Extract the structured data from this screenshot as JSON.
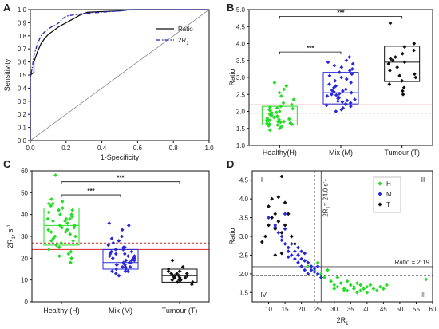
{
  "figure": {
    "panels": [
      "A",
      "B",
      "C",
      "D"
    ]
  },
  "chart_data": [
    {
      "panel": "A",
      "type": "line",
      "xlabel": "1-Specificity",
      "ylabel": "Sensitivity",
      "xlim": [
        0,
        1
      ],
      "ylim": [
        0,
        1
      ],
      "xticks": [
        "0.0",
        "0.2",
        "0.4",
        "0.6",
        "0.8",
        "1.0"
      ],
      "yticks": [
        "0.0",
        "0.1",
        "0.2",
        "0.3",
        "0.4",
        "0.5",
        "0.6",
        "0.7",
        "0.8",
        "0.9",
        "1.0"
      ],
      "legend_position": "top-right",
      "series": [
        {
          "name": "Ratio",
          "color": "#111111",
          "style": "solid",
          "x": [
            0,
            0,
            0.02,
            0.02,
            0.04,
            0.06,
            0.08,
            0.1,
            0.12,
            0.14,
            0.16,
            0.2,
            0.24,
            0.28,
            0.3,
            0.32,
            0.4,
            0.5,
            0.55,
            0.6,
            1.0
          ],
          "y": [
            0,
            0.5,
            0.52,
            0.6,
            0.68,
            0.74,
            0.78,
            0.81,
            0.83,
            0.85,
            0.87,
            0.9,
            0.93,
            0.96,
            0.97,
            0.98,
            0.985,
            0.99,
            1.0,
            1.0,
            1.0
          ]
        },
        {
          "name": "2R",
          "name_sub": "1",
          "color": "#2323b8",
          "style": "dashdot",
          "x": [
            0,
            0,
            0.01,
            0.02,
            0.04,
            0.06,
            0.08,
            0.1,
            0.12,
            0.14,
            0.16,
            0.18,
            0.2,
            0.24,
            0.3,
            0.4,
            0.5,
            0.58,
            1.0
          ],
          "y": [
            0,
            0.48,
            0.55,
            0.65,
            0.74,
            0.8,
            0.83,
            0.85,
            0.87,
            0.88,
            0.9,
            0.93,
            0.95,
            0.96,
            0.97,
            0.98,
            0.99,
            1.0,
            1.0
          ]
        },
        {
          "name": "",
          "color": "#888888",
          "style": "thin",
          "x": [
            0,
            1
          ],
          "y": [
            0,
            1
          ]
        }
      ]
    },
    {
      "panel": "B",
      "type": "scatter",
      "ylabel": "Ratio",
      "ylim": [
        1.0,
        5.0
      ],
      "yticks": [
        "1.0",
        "1.5",
        "2.0",
        "2.5",
        "3.0",
        "3.5",
        "4.0",
        "4.5",
        "5.0"
      ],
      "categories": [
        "Healthy(H)",
        "Mix (M)",
        "Tumour (T)"
      ],
      "colors": [
        "#22dd22",
        "#2a2ad8",
        "#111111"
      ],
      "boxes": [
        {
          "q1": 1.6,
          "median": 1.72,
          "q3": 2.15
        },
        {
          "q1": 2.22,
          "median": 2.55,
          "q3": 3.15
        },
        {
          "q1": 2.88,
          "median": 3.45,
          "q3": 3.92
        }
      ],
      "ref_lines": [
        {
          "y": 2.19,
          "style": "solid",
          "color": "#e02020"
        },
        {
          "y": 1.95,
          "style": "dashed",
          "color": "#e02020"
        }
      ],
      "significance": [
        {
          "from": 0,
          "to": 2,
          "y": 4.8,
          "label": "***"
        },
        {
          "from": 0,
          "to": 1,
          "y": 3.75,
          "label": "***"
        }
      ],
      "points": [
        [
          1.45,
          1.5,
          1.55,
          1.58,
          1.6,
          1.62,
          1.63,
          1.65,
          1.66,
          1.68,
          1.7,
          1.7,
          1.72,
          1.73,
          1.74,
          1.75,
          1.76,
          1.78,
          1.8,
          1.82,
          1.84,
          1.86,
          1.88,
          1.9,
          1.92,
          1.95,
          1.97,
          2.0,
          2.02,
          2.05,
          2.08,
          2.1,
          2.12,
          2.15,
          2.2,
          2.25,
          2.35,
          2.45,
          2.55,
          2.65,
          2.75,
          2.85
        ],
        [
          2.0,
          2.05,
          2.1,
          2.15,
          2.18,
          2.2,
          2.22,
          2.25,
          2.28,
          2.3,
          2.32,
          2.35,
          2.38,
          2.4,
          2.42,
          2.45,
          2.48,
          2.5,
          2.52,
          2.55,
          2.58,
          2.6,
          2.62,
          2.65,
          2.7,
          2.75,
          2.8,
          2.85,
          2.9,
          2.95,
          3.0,
          3.05,
          3.1,
          3.15,
          3.2,
          3.25,
          3.3,
          3.35,
          3.4,
          3.45,
          3.5,
          3.6
        ],
        [
          2.5,
          2.6,
          2.7,
          2.8,
          2.9,
          3.0,
          3.05,
          3.1,
          3.2,
          3.3,
          3.4,
          3.45,
          3.5,
          3.55,
          3.6,
          3.7,
          3.8,
          3.9,
          4.0,
          4.6
        ]
      ]
    },
    {
      "panel": "C",
      "type": "scatter",
      "ylabel": "2R",
      "ylabel_sub": "1",
      "ylabel_unit": ", s",
      "ylabel_sup": "-1",
      "ylim": [
        0,
        60
      ],
      "yticks": [
        "0",
        "10",
        "20",
        "30",
        "40",
        "50",
        "60"
      ],
      "categories": [
        "Healthy (H)",
        "Mix (M)",
        "Tumour (T)"
      ],
      "colors": [
        "#22dd22",
        "#2a2ad8",
        "#111111"
      ],
      "boxes": [
        {
          "q1": 26,
          "median": 35,
          "q3": 43
        },
        {
          "q1": 15,
          "median": 18,
          "q3": 24
        },
        {
          "q1": 9,
          "median": 12,
          "q3": 15
        }
      ],
      "ref_lines": [
        {
          "y": 24.0,
          "style": "solid",
          "color": "#e02020"
        },
        {
          "y": 27.0,
          "style": "dashed",
          "color": "#e02020"
        }
      ],
      "significance": [
        {
          "from": 0,
          "to": 2,
          "y": 55,
          "label": "***"
        },
        {
          "from": 0,
          "to": 1,
          "y": 49,
          "label": "***"
        }
      ],
      "points": [
        [
          18,
          20,
          22,
          24,
          25,
          26,
          27,
          28,
          29,
          30,
          30,
          31,
          32,
          32,
          33,
          34,
          34,
          35,
          35,
          36,
          37,
          37,
          38,
          38,
          39,
          40,
          40,
          41,
          42,
          42,
          43,
          44,
          45,
          45,
          46,
          47,
          38,
          33,
          28,
          23,
          21,
          58
        ],
        [
          12,
          13,
          14,
          14,
          15,
          15,
          16,
          16,
          17,
          17,
          18,
          18,
          18,
          19,
          19,
          20,
          20,
          20,
          21,
          21,
          22,
          22,
          22,
          23,
          23,
          24,
          24,
          25,
          25,
          26,
          27,
          28,
          29,
          30,
          33,
          35,
          36,
          17,
          19,
          21,
          14,
          16
        ],
        [
          8,
          9,
          9,
          10,
          10,
          10,
          11,
          11,
          11,
          12,
          12,
          12,
          12,
          13,
          13,
          13,
          14,
          14,
          15,
          16,
          19
        ]
      ]
    },
    {
      "panel": "D",
      "type": "scatter",
      "xlabel": "2R",
      "xlabel_sub": "1",
      "ylabel": "Ratio",
      "xlim": [
        5,
        60
      ],
      "ylim": [
        1.25,
        4.75
      ],
      "xticks": [
        "10",
        "15",
        "20",
        "25",
        "30",
        "35",
        "40",
        "45",
        "50",
        "55",
        "60"
      ],
      "yticks": [
        "1.5",
        "2.0",
        "2.5",
        "3.0",
        "3.5",
        "4.0",
        "4.5"
      ],
      "legend_position": "top-right",
      "quadrants": [
        "I",
        "II",
        "III",
        "IV"
      ],
      "annotations": {
        "vline_label": "2R",
        "vline_sub": "1",
        "vline_value": "= 24.0 s",
        "vline_sup": "-1",
        "hline_label": "Ratio = 2.19"
      },
      "ref_lines": {
        "vertical_solid": 26.0,
        "vertical_dashed": 24.0,
        "horizontal_solid": 2.19,
        "horizontal_dashed": 1.95
      },
      "series": [
        {
          "name": "H",
          "color": "#22dd22",
          "x": [
            22,
            24,
            25,
            26,
            27,
            28,
            29,
            30,
            31,
            31,
            32,
            33,
            34,
            34,
            35,
            36,
            36,
            37,
            38,
            38,
            39,
            40,
            40,
            41,
            42,
            43,
            44,
            45,
            46,
            58,
            33,
            37,
            30
          ],
          "y": [
            2.2,
            2.1,
            2.3,
            2.0,
            1.9,
            2.1,
            1.8,
            1.7,
            1.9,
            1.65,
            1.75,
            1.6,
            1.8,
            1.55,
            1.7,
            1.65,
            1.6,
            1.75,
            1.55,
            1.7,
            1.6,
            1.65,
            1.5,
            1.7,
            1.6,
            1.55,
            1.65,
            1.6,
            1.7,
            1.85,
            1.55,
            1.5,
            1.6
          ]
        },
        {
          "name": "M",
          "color": "#2a2ad8",
          "x": [
            10,
            12,
            13,
            14,
            14,
            15,
            15,
            16,
            16,
            17,
            17,
            18,
            18,
            19,
            19,
            20,
            20,
            21,
            21,
            22,
            22,
            23,
            23,
            24,
            24,
            25,
            25,
            26,
            13,
            15,
            17,
            19,
            21,
            12,
            16,
            20
          ],
          "y": [
            3.5,
            3.3,
            3.1,
            3.0,
            2.9,
            2.8,
            3.2,
            2.7,
            2.6,
            2.8,
            2.5,
            2.6,
            2.4,
            2.5,
            2.3,
            2.4,
            2.2,
            2.35,
            2.1,
            2.3,
            2.0,
            2.2,
            2.1,
            2.15,
            2.05,
            2.0,
            2.2,
            1.9,
            3.4,
            3.6,
            3.0,
            2.7,
            2.55,
            3.25,
            2.45,
            2.6
          ]
        },
        {
          "name": "T",
          "color": "#111111",
          "x": [
            8,
            9,
            10,
            10,
            11,
            11,
            12,
            12,
            13,
            13,
            14,
            14,
            15,
            15,
            16,
            17,
            18,
            14,
            12
          ],
          "y": [
            2.85,
            3.0,
            3.3,
            3.8,
            3.5,
            4.0,
            3.2,
            3.6,
            4.05,
            3.4,
            4.6,
            3.1,
            3.9,
            3.3,
            3.6,
            3.0,
            2.8,
            2.55,
            2.5
          ]
        }
      ]
    }
  ]
}
